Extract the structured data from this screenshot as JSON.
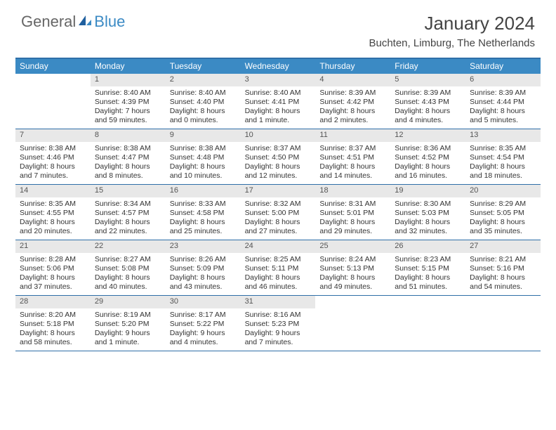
{
  "logo": {
    "text1": "General",
    "text2": "Blue"
  },
  "title": "January 2024",
  "location": "Buchten, Limburg, The Netherlands",
  "header_bg": "#3b8ac4",
  "border_color": "#2f6fa8",
  "daynum_bg": "#e8e8e8",
  "weekdays": [
    "Sunday",
    "Monday",
    "Tuesday",
    "Wednesday",
    "Thursday",
    "Friday",
    "Saturday"
  ],
  "start_offset": 1,
  "days": [
    {
      "n": 1,
      "sunrise": "8:40 AM",
      "sunset": "4:39 PM",
      "daylight": "7 hours and 59 minutes."
    },
    {
      "n": 2,
      "sunrise": "8:40 AM",
      "sunset": "4:40 PM",
      "daylight": "8 hours and 0 minutes."
    },
    {
      "n": 3,
      "sunrise": "8:40 AM",
      "sunset": "4:41 PM",
      "daylight": "8 hours and 1 minute."
    },
    {
      "n": 4,
      "sunrise": "8:39 AM",
      "sunset": "4:42 PM",
      "daylight": "8 hours and 2 minutes."
    },
    {
      "n": 5,
      "sunrise": "8:39 AM",
      "sunset": "4:43 PM",
      "daylight": "8 hours and 4 minutes."
    },
    {
      "n": 6,
      "sunrise": "8:39 AM",
      "sunset": "4:44 PM",
      "daylight": "8 hours and 5 minutes."
    },
    {
      "n": 7,
      "sunrise": "8:38 AM",
      "sunset": "4:46 PM",
      "daylight": "8 hours and 7 minutes."
    },
    {
      "n": 8,
      "sunrise": "8:38 AM",
      "sunset": "4:47 PM",
      "daylight": "8 hours and 8 minutes."
    },
    {
      "n": 9,
      "sunrise": "8:38 AM",
      "sunset": "4:48 PM",
      "daylight": "8 hours and 10 minutes."
    },
    {
      "n": 10,
      "sunrise": "8:37 AM",
      "sunset": "4:50 PM",
      "daylight": "8 hours and 12 minutes."
    },
    {
      "n": 11,
      "sunrise": "8:37 AM",
      "sunset": "4:51 PM",
      "daylight": "8 hours and 14 minutes."
    },
    {
      "n": 12,
      "sunrise": "8:36 AM",
      "sunset": "4:52 PM",
      "daylight": "8 hours and 16 minutes."
    },
    {
      "n": 13,
      "sunrise": "8:35 AM",
      "sunset": "4:54 PM",
      "daylight": "8 hours and 18 minutes."
    },
    {
      "n": 14,
      "sunrise": "8:35 AM",
      "sunset": "4:55 PM",
      "daylight": "8 hours and 20 minutes."
    },
    {
      "n": 15,
      "sunrise": "8:34 AM",
      "sunset": "4:57 PM",
      "daylight": "8 hours and 22 minutes."
    },
    {
      "n": 16,
      "sunrise": "8:33 AM",
      "sunset": "4:58 PM",
      "daylight": "8 hours and 25 minutes."
    },
    {
      "n": 17,
      "sunrise": "8:32 AM",
      "sunset": "5:00 PM",
      "daylight": "8 hours and 27 minutes."
    },
    {
      "n": 18,
      "sunrise": "8:31 AM",
      "sunset": "5:01 PM",
      "daylight": "8 hours and 29 minutes."
    },
    {
      "n": 19,
      "sunrise": "8:30 AM",
      "sunset": "5:03 PM",
      "daylight": "8 hours and 32 minutes."
    },
    {
      "n": 20,
      "sunrise": "8:29 AM",
      "sunset": "5:05 PM",
      "daylight": "8 hours and 35 minutes."
    },
    {
      "n": 21,
      "sunrise": "8:28 AM",
      "sunset": "5:06 PM",
      "daylight": "8 hours and 37 minutes."
    },
    {
      "n": 22,
      "sunrise": "8:27 AM",
      "sunset": "5:08 PM",
      "daylight": "8 hours and 40 minutes."
    },
    {
      "n": 23,
      "sunrise": "8:26 AM",
      "sunset": "5:09 PM",
      "daylight": "8 hours and 43 minutes."
    },
    {
      "n": 24,
      "sunrise": "8:25 AM",
      "sunset": "5:11 PM",
      "daylight": "8 hours and 46 minutes."
    },
    {
      "n": 25,
      "sunrise": "8:24 AM",
      "sunset": "5:13 PM",
      "daylight": "8 hours and 49 minutes."
    },
    {
      "n": 26,
      "sunrise": "8:23 AM",
      "sunset": "5:15 PM",
      "daylight": "8 hours and 51 minutes."
    },
    {
      "n": 27,
      "sunrise": "8:21 AM",
      "sunset": "5:16 PM",
      "daylight": "8 hours and 54 minutes."
    },
    {
      "n": 28,
      "sunrise": "8:20 AM",
      "sunset": "5:18 PM",
      "daylight": "8 hours and 58 minutes."
    },
    {
      "n": 29,
      "sunrise": "8:19 AM",
      "sunset": "5:20 PM",
      "daylight": "9 hours and 1 minute."
    },
    {
      "n": 30,
      "sunrise": "8:17 AM",
      "sunset": "5:22 PM",
      "daylight": "9 hours and 4 minutes."
    },
    {
      "n": 31,
      "sunrise": "8:16 AM",
      "sunset": "5:23 PM",
      "daylight": "9 hours and 7 minutes."
    }
  ],
  "labels": {
    "sunrise": "Sunrise:",
    "sunset": "Sunset:",
    "daylight": "Daylight:"
  }
}
